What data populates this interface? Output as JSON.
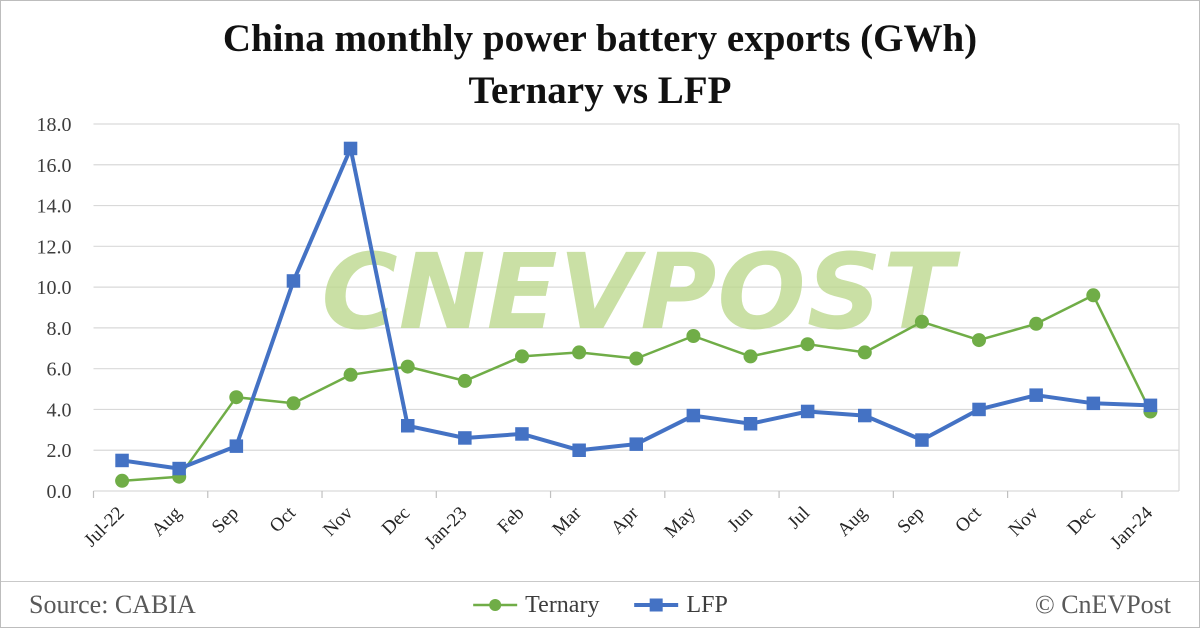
{
  "title": {
    "line1": "China monthly power battery exports (GWh)",
    "line2": "Ternary vs LFP"
  },
  "watermark": "CNEVPOST",
  "footer": {
    "source": "Source: CABIA",
    "copyright": "© CnEVPost"
  },
  "colors": {
    "ternary_green": "#70AD47",
    "lfp_blue": "#4472C4",
    "watermark_green": "#bdd98f",
    "gridline_gray": "#d9d9d9",
    "tick_gray": "#c0c0c0"
  },
  "chart_data": {
    "type": "line",
    "title": "China monthly power battery exports (GWh) Ternary vs LFP",
    "xlabel": "",
    "ylabel": "",
    "ylim": [
      0,
      18
    ],
    "ytick_step": 2,
    "ytick_labels": [
      "0.0",
      "2.0",
      "4.0",
      "6.0",
      "8.0",
      "10.0",
      "12.0",
      "14.0",
      "16.0",
      "18.0"
    ],
    "grid": true,
    "legend_position": "bottom",
    "categories": [
      "Jul-22",
      "Aug",
      "Sep",
      "Oct",
      "Nov",
      "Dec",
      "Jan-23",
      "Feb",
      "Mar",
      "Apr",
      "May",
      "Jun",
      "Jul",
      "Aug",
      "Sep",
      "Oct",
      "Nov",
      "Dec",
      "Jan-24"
    ],
    "series": [
      {
        "name": "Ternary",
        "color": "#70AD47",
        "marker": "circle",
        "values": [
          0.5,
          0.7,
          4.6,
          4.3,
          5.7,
          6.1,
          5.4,
          6.6,
          6.8,
          6.5,
          7.6,
          6.6,
          7.2,
          6.8,
          8.3,
          7.4,
          8.2,
          9.6,
          3.9
        ]
      },
      {
        "name": "LFP",
        "color": "#4472C4",
        "marker": "square",
        "values": [
          1.5,
          1.1,
          2.2,
          10.3,
          16.8,
          3.2,
          2.6,
          2.8,
          2.0,
          2.3,
          3.7,
          3.3,
          3.9,
          3.7,
          2.5,
          4.0,
          4.7,
          4.3,
          4.2
        ]
      }
    ]
  }
}
